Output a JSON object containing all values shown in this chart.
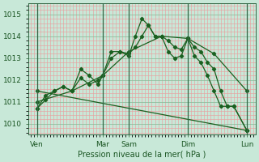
{
  "bg_color": "#c8e8d8",
  "grid_minor_color": "#e8a0a0",
  "grid_major_color": "#88bb99",
  "line_color": "#1a6020",
  "xlabel": "Pression niveau de la mer( hPa )",
  "ylim": [
    1009.5,
    1015.5
  ],
  "yticks": [
    1010,
    1011,
    1012,
    1013,
    1014,
    1015
  ],
  "day_labels": [
    "Ven",
    "Mar",
    "Sam",
    "Dim",
    "Lun"
  ],
  "day_positions": [
    0,
    60,
    84,
    138,
    192
  ],
  "xlim": [
    -8,
    200
  ],
  "series": [
    {
      "x": [
        0,
        8,
        16,
        24,
        32,
        40,
        48,
        56,
        60,
        68,
        76,
        84,
        90,
        96,
        102,
        108,
        114,
        120,
        126,
        132,
        138,
        144,
        150,
        156,
        162,
        168,
        174,
        180,
        192
      ],
      "y": [
        1010.7,
        1011.1,
        1011.5,
        1011.7,
        1011.5,
        1012.5,
        1012.2,
        1011.8,
        1012.2,
        1013.3,
        1013.3,
        1013.1,
        1014.0,
        1014.8,
        1014.5,
        1014.0,
        1014.0,
        1013.3,
        1013.0,
        1013.1,
        1013.9,
        1013.1,
        1012.8,
        1012.2,
        1011.5,
        1010.8,
        1010.8,
        1010.8,
        1009.7
      ]
    },
    {
      "x": [
        0,
        8,
        16,
        24,
        32,
        40,
        48,
        56,
        60,
        68,
        76,
        84,
        90,
        96,
        102,
        108,
        114,
        120,
        126,
        132,
        138,
        144,
        150,
        156,
        162,
        168,
        174,
        180,
        192
      ],
      "y": [
        1010.7,
        1011.3,
        1011.5,
        1011.7,
        1011.5,
        1012.1,
        1011.8,
        1012.0,
        1012.2,
        1013.0,
        1013.3,
        1013.2,
        1013.5,
        1014.0,
        1014.5,
        1014.0,
        1014.0,
        1013.8,
        1013.5,
        1013.4,
        1013.9,
        1013.5,
        1013.3,
        1012.8,
        1012.5,
        1011.5,
        1010.8,
        1010.8,
        1009.7
      ]
    },
    {
      "x": [
        0,
        32,
        60,
        84,
        114,
        138,
        162,
        192
      ],
      "y": [
        1011.0,
        1011.5,
        1012.2,
        1013.3,
        1014.0,
        1013.9,
        1013.2,
        1011.5
      ]
    },
    {
      "x": [
        0,
        192
      ],
      "y": [
        1011.5,
        1009.7
      ]
    }
  ]
}
